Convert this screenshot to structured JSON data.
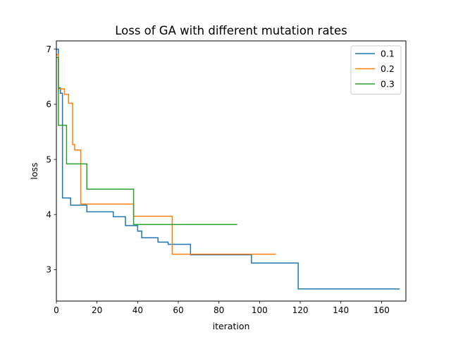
{
  "chart_data": {
    "type": "line",
    "title": "Loss of GA with different mutation rates",
    "xlabel": "iteration",
    "ylabel": "loss",
    "xlim": [
      0,
      172
    ],
    "ylim": [
      2.43,
      7.15
    ],
    "xticks": [
      0,
      20,
      40,
      60,
      80,
      100,
      120,
      140,
      160
    ],
    "yticks": [
      3,
      4,
      5,
      6,
      7
    ],
    "grid": false,
    "legend_position": "top-right",
    "series": [
      {
        "name": "0.1",
        "color": "#1f77b4",
        "step_points": [
          [
            0,
            7.0
          ],
          [
            1,
            6.3
          ],
          [
            2,
            6.2
          ],
          [
            3,
            4.3
          ],
          [
            7,
            4.17
          ],
          [
            12,
            4.17
          ],
          [
            15,
            4.05
          ],
          [
            28,
            3.96
          ],
          [
            34,
            3.8
          ],
          [
            40,
            3.7
          ],
          [
            42,
            3.58
          ],
          [
            50,
            3.5
          ],
          [
            55,
            3.46
          ],
          [
            66,
            3.27
          ],
          [
            96,
            3.12
          ],
          [
            119,
            2.65
          ],
          [
            169,
            2.65
          ]
        ]
      },
      {
        "name": "0.2",
        "color": "#ff7f0e",
        "step_points": [
          [
            0,
            6.9
          ],
          [
            1,
            6.28
          ],
          [
            4,
            6.18
          ],
          [
            6,
            6.02
          ],
          [
            8,
            5.27
          ],
          [
            9,
            5.17
          ],
          [
            12,
            4.19
          ],
          [
            37,
            4.19
          ],
          [
            38,
            3.97
          ],
          [
            57,
            3.28
          ],
          [
            108,
            3.28
          ]
        ]
      },
      {
        "name": "0.3",
        "color": "#2ca02c",
        "step_points": [
          [
            0,
            6.85
          ],
          [
            1,
            5.62
          ],
          [
            5,
            4.92
          ],
          [
            15,
            4.46
          ],
          [
            38,
            3.82
          ],
          [
            89,
            3.82
          ]
        ]
      }
    ]
  }
}
